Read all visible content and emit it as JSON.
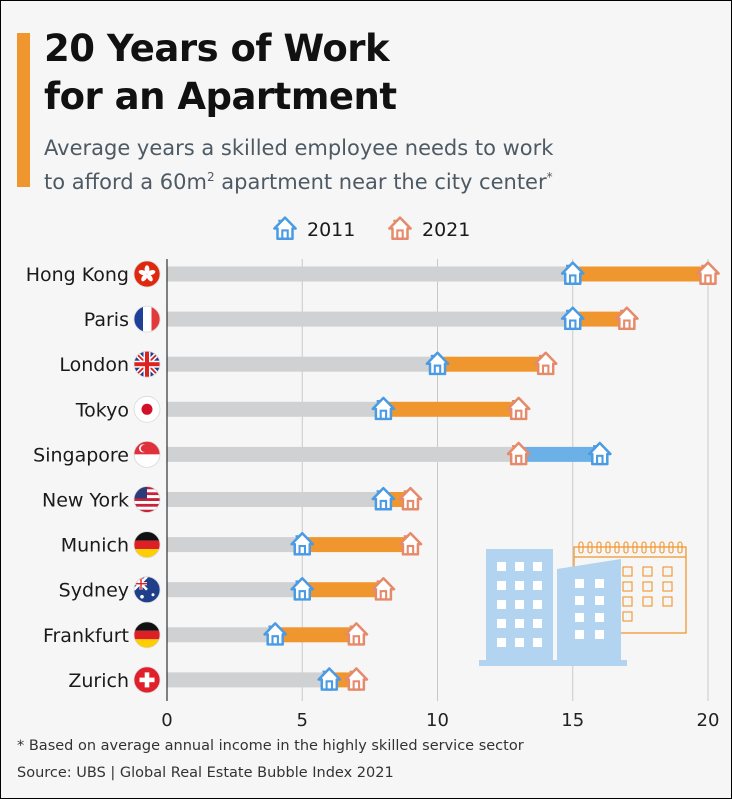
{
  "header": {
    "title_line1": "20 Years of Work",
    "title_line2": "for an Apartment",
    "subtitle_line1": "Average years a skilled employee needs to work",
    "subtitle_line2_pre": "to afford a 60m",
    "subtitle_sup": "2",
    "subtitle_line2_post": " apartment near the city center",
    "subtitle_star": "*"
  },
  "footer": {
    "footnote": "* Based on average annual income in the highly skilled service sector",
    "source": "Source: UBS | Global Real Estate Bubble Index 2021"
  },
  "colors": {
    "color_2011": "#4a9be3",
    "color_2021": "#e58a6b",
    "increase_bar": "#f0962f",
    "decrease_bar": "#6cb0e8",
    "base_bar": "#cfd1d3",
    "accent": "#f0962f",
    "illustration_buildings": "#b3d4f0",
    "illustration_calendar": "#f0962f"
  },
  "chart_data": {
    "type": "dumbbell",
    "xlim": [
      0,
      20
    ],
    "x_ticks": [
      0,
      5,
      10,
      15,
      20
    ],
    "grid": "vertical",
    "legend_position": "top",
    "categories": [
      "Hong Kong",
      "Paris",
      "London",
      "Tokyo",
      "Singapore",
      "New York",
      "Munich",
      "Sydney",
      "Frankfurt",
      "Zurich"
    ],
    "flags": [
      "hong-kong-flag",
      "france-flag",
      "uk-flag",
      "japan-flag",
      "singapore-flag",
      "usa-flag",
      "germany-flag",
      "australia-flag",
      "germany-flag",
      "switzerland-flag"
    ],
    "series": [
      {
        "name": "2011",
        "icon": "house-icon",
        "values": [
          15,
          15,
          10,
          8,
          16,
          8,
          5,
          5,
          4,
          6
        ]
      },
      {
        "name": "2021",
        "icon": "house-icon",
        "values": [
          20,
          17,
          14,
          13,
          13,
          9,
          9,
          8,
          7,
          7
        ]
      }
    ]
  }
}
